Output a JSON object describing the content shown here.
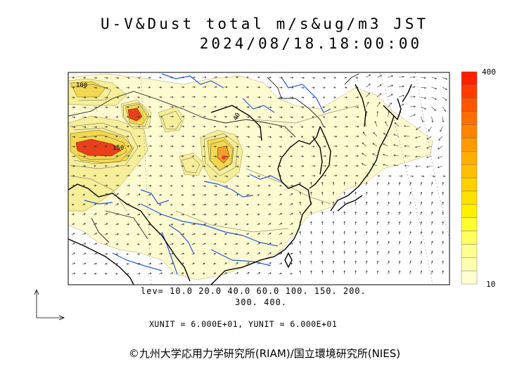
{
  "header": {
    "title": "U-V&Dust total m/s&ug/m3 JST",
    "datetime": "2024/08/18.18:00:00"
  },
  "legend": {
    "levels_line1": "lev= 10.0 20.0 40.0 60.0 100. 150. 200.",
    "levels_line2": "300. 400.",
    "colorbar_max": "400",
    "colorbar_min": "10",
    "colors": [
      "#ffffd0",
      "#ffffb0",
      "#ffff90",
      "#ffff60",
      "#ffff30",
      "#fff000",
      "#ffe000",
      "#ffd000",
      "#ffc000",
      "#ffae00",
      "#ff9a00",
      "#ff8400",
      "#ff6e00",
      "#ff5500",
      "#ff3c00",
      "#ff2000"
    ]
  },
  "map_labels": {
    "contour_a": "100",
    "contour_b": "150",
    "contour_c": "40"
  },
  "footer": {
    "units": "XUNIT = 6.000E+01, YUNIT = 6.000E+01",
    "copyright": "©九州大学応用力学研究所(RIAM)/国立環境研究所(NIES)"
  },
  "colors": {
    "dust_light": "#fffbd0",
    "dust_mid": "#f5eb86",
    "dust_high": "#f0d650",
    "dust_peak": "#e8401a",
    "river": "#1e5cd8",
    "coast": "#000000",
    "arrow": "#333333"
  }
}
